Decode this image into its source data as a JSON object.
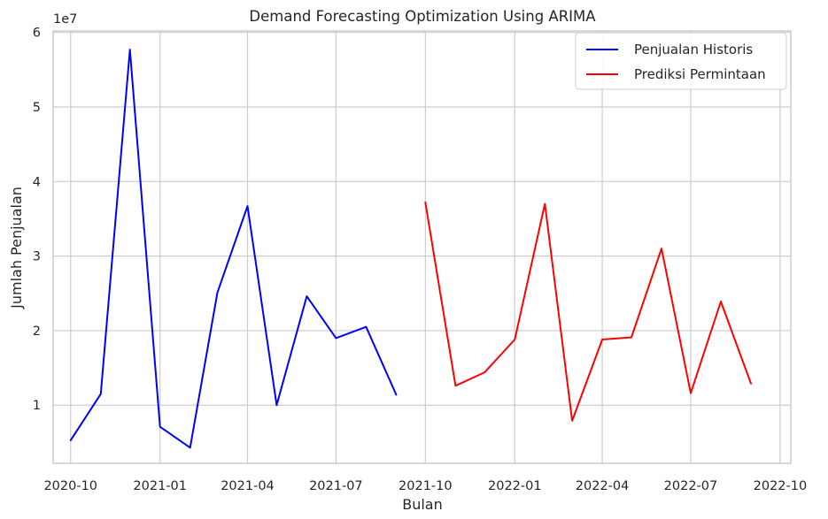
{
  "chart_data": {
    "type": "line",
    "title": "Demand Forecasting Optimization Using ARIMA",
    "xlabel": "Bulan",
    "ylabel": "Jumlah Penjualan",
    "y_multiplier_label": "1e7",
    "y_multiplier": 10000000,
    "ylim": [
      2200000,
      60200000
    ],
    "yticks": [
      1,
      2,
      3,
      4,
      5,
      6
    ],
    "xlim": [
      "2020-09-13",
      "2022-10-12"
    ],
    "xticks": [
      "2020-10",
      "2021-01",
      "2021-04",
      "2021-07",
      "2021-10",
      "2022-01",
      "2022-04",
      "2022-07",
      "2022-10"
    ],
    "grid": true,
    "legend_position": "top-right",
    "series": [
      {
        "name": "Penjualan Historis",
        "color": "#0000ff",
        "x": [
          "2020-10-01",
          "2020-11-01",
          "2020-12-01",
          "2021-01-01",
          "2021-02-01",
          "2021-03-01",
          "2021-04-01",
          "2021-05-01",
          "2021-06-01",
          "2021-07-01",
          "2021-08-01",
          "2021-09-01"
        ],
        "values": [
          5300000,
          11500000,
          57700000,
          7100000,
          4300000,
          25100000,
          36700000,
          10000000,
          24600000,
          19000000,
          20500000,
          11400000
        ]
      },
      {
        "name": "Prediksi Permintaan",
        "color": "#ff0000",
        "x": [
          "2021-10-01",
          "2021-11-01",
          "2021-12-01",
          "2022-01-01",
          "2022-02-01",
          "2022-03-01",
          "2022-04-01",
          "2022-05-01",
          "2022-06-01",
          "2022-07-01",
          "2022-08-01",
          "2022-09-01"
        ],
        "values": [
          37200000,
          12600000,
          14400000,
          18800000,
          37000000,
          7900000,
          18800000,
          19100000,
          31000000,
          11600000,
          23900000,
          12900000
        ]
      }
    ]
  }
}
